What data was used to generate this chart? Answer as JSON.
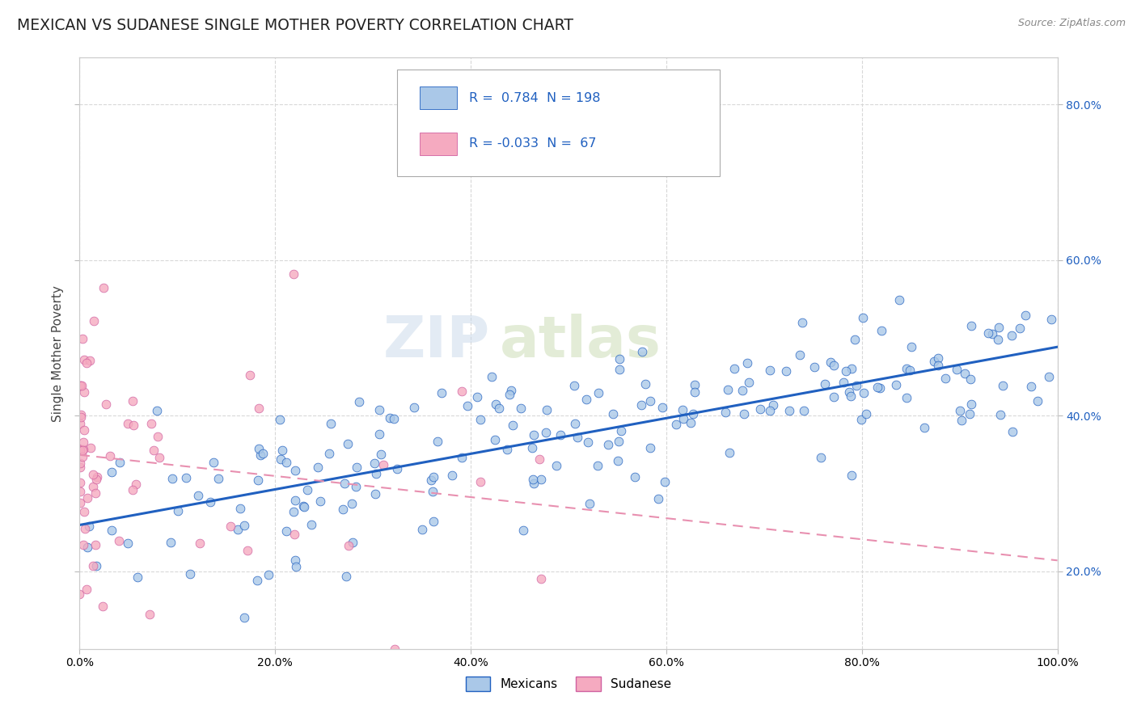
{
  "title": "MEXICAN VS SUDANESE SINGLE MOTHER POVERTY CORRELATION CHART",
  "source": "Source: ZipAtlas.com",
  "ylabel": "Single Mother Poverty",
  "xlim": [
    0.0,
    1.0
  ],
  "ylim": [
    0.1,
    0.86
  ],
  "yticks": [
    0.2,
    0.4,
    0.6,
    0.8
  ],
  "xticks": [
    0.0,
    0.2,
    0.4,
    0.6,
    0.8,
    1.0
  ],
  "mexican_R": 0.784,
  "mexican_N": 198,
  "sudanese_R": -0.033,
  "sudanese_N": 67,
  "mexican_color": "#aac8e8",
  "sudanese_color": "#f5aac0",
  "mexican_line_color": "#2060c0",
  "sudanese_line_color": "#e890b0",
  "watermark": "ZIPAtlas"
}
